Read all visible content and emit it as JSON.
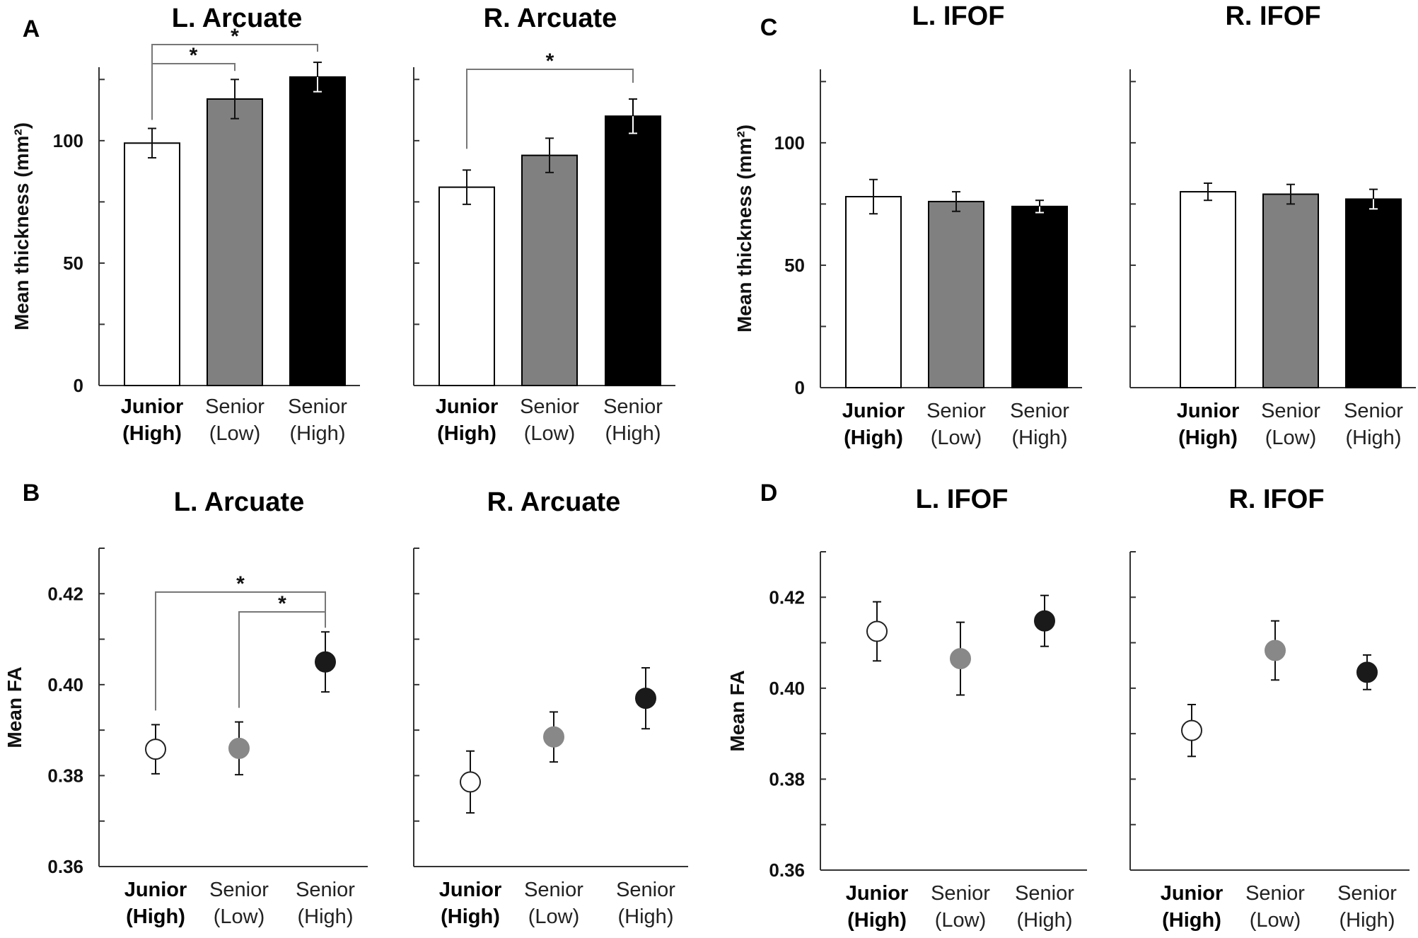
{
  "chart_data": [
    {
      "type": "bar",
      "panel": "A",
      "title": "L. Arcuate",
      "ylabel": "Mean thickness (mm²)",
      "ylim": [
        0,
        130
      ],
      "yticks": [
        0,
        50,
        100
      ],
      "categories": [
        [
          "Junior",
          "(High)"
        ],
        [
          "Senior",
          "(Low)"
        ],
        [
          "Senior",
          "(High)"
        ]
      ],
      "values": [
        99,
        117,
        126
      ],
      "errors": [
        6,
        8,
        6
      ],
      "significance": [
        {
          "from": 0,
          "to": 1,
          "label": "*"
        },
        {
          "from": 0,
          "to": 2,
          "label": "*"
        }
      ]
    },
    {
      "type": "bar",
      "panel": "",
      "title": "R. Arcuate",
      "ylabel": "",
      "ylim": [
        0,
        130
      ],
      "yticks": [
        0,
        50,
        100
      ],
      "categories": [
        [
          "Junior",
          "(High)"
        ],
        [
          "Senior",
          "(Low)"
        ],
        [
          "Senior",
          "(High)"
        ]
      ],
      "values": [
        81,
        94,
        110
      ],
      "errors": [
        7,
        7,
        7
      ],
      "significance": [
        {
          "from": 0,
          "to": 2,
          "label": "*"
        }
      ]
    },
    {
      "type": "bar",
      "panel": "C",
      "title": "L. IFOF",
      "ylabel": "Mean thickness (mm²)",
      "ylim": [
        0,
        130
      ],
      "yticks": [
        0,
        50,
        100
      ],
      "categories": [
        [
          "Junior",
          "(High)"
        ],
        [
          "Senior",
          "(Low)"
        ],
        [
          "Senior",
          "(High)"
        ]
      ],
      "values": [
        78,
        76,
        74
      ],
      "errors": [
        7,
        4,
        2.5
      ],
      "significance": []
    },
    {
      "type": "bar",
      "panel": "",
      "title": "R. IFOF",
      "ylabel": "",
      "ylim": [
        0,
        130
      ],
      "yticks": [
        0,
        50,
        100
      ],
      "categories": [
        [
          "Junior",
          "(High)"
        ],
        [
          "Senior",
          "(Low)"
        ],
        [
          "Senior",
          "(High)"
        ]
      ],
      "values": [
        80,
        79,
        77
      ],
      "errors": [
        3.5,
        4,
        4
      ],
      "significance": []
    },
    {
      "type": "scatter",
      "panel": "B",
      "title": "L. Arcuate",
      "ylabel": "Mean FA",
      "ylim": [
        0.36,
        0.43
      ],
      "yticks": [
        0.36,
        0.38,
        0.4,
        0.42
      ],
      "categories": [
        [
          "Junior",
          "(High)"
        ],
        [
          "Senior",
          "(Low)"
        ],
        [
          "Senior",
          "(High)"
        ]
      ],
      "values": [
        0.3858,
        0.386,
        0.405
      ],
      "errors": [
        0.0054,
        0.0058,
        0.0066
      ],
      "significance": [
        {
          "from": 0,
          "to": 2,
          "label": "*"
        },
        {
          "from": 1,
          "to": 2,
          "label": "*"
        }
      ]
    },
    {
      "type": "scatter",
      "panel": "",
      "title": "R. Arcuate",
      "ylabel": "",
      "ylim": [
        0.36,
        0.43
      ],
      "yticks": [
        0.36,
        0.38,
        0.4,
        0.42
      ],
      "categories": [
        [
          "Junior",
          "(High)"
        ],
        [
          "Senior",
          "(Low)"
        ],
        [
          "Senior",
          "(High)"
        ]
      ],
      "values": [
        0.3786,
        0.3885,
        0.397
      ],
      "errors": [
        0.0068,
        0.0055,
        0.0067
      ],
      "significance": []
    },
    {
      "type": "scatter",
      "panel": "D",
      "title": "L. IFOF",
      "ylabel": "Mean FA",
      "ylim": [
        0.36,
        0.43
      ],
      "yticks": [
        0.36,
        0.38,
        0.4,
        0.42
      ],
      "categories": [
        [
          "Junior",
          "(High)"
        ],
        [
          "Senior",
          "(Low)"
        ],
        [
          "Senior",
          "(High)"
        ]
      ],
      "values": [
        0.4125,
        0.4065,
        0.4148
      ],
      "errors": [
        0.0065,
        0.008,
        0.0056
      ],
      "significance": []
    },
    {
      "type": "scatter",
      "panel": "",
      "title": "R. IFOF",
      "ylabel": "",
      "ylim": [
        0.36,
        0.43
      ],
      "yticks": [
        0.36,
        0.38,
        0.4,
        0.42
      ],
      "categories": [
        [
          "Junior",
          "(High)"
        ],
        [
          "Senior",
          "(Low)"
        ],
        [
          "Senior",
          "(High)"
        ]
      ],
      "values": [
        0.3907,
        0.4083,
        0.4035
      ],
      "errors": [
        0.0057,
        0.0065,
        0.0038
      ],
      "significance": []
    }
  ],
  "colors": {
    "junior": "#ffffff",
    "senior_low": "#808080",
    "senior_high": "#000000",
    "axis": "#333333",
    "bracket": "#777777"
  }
}
